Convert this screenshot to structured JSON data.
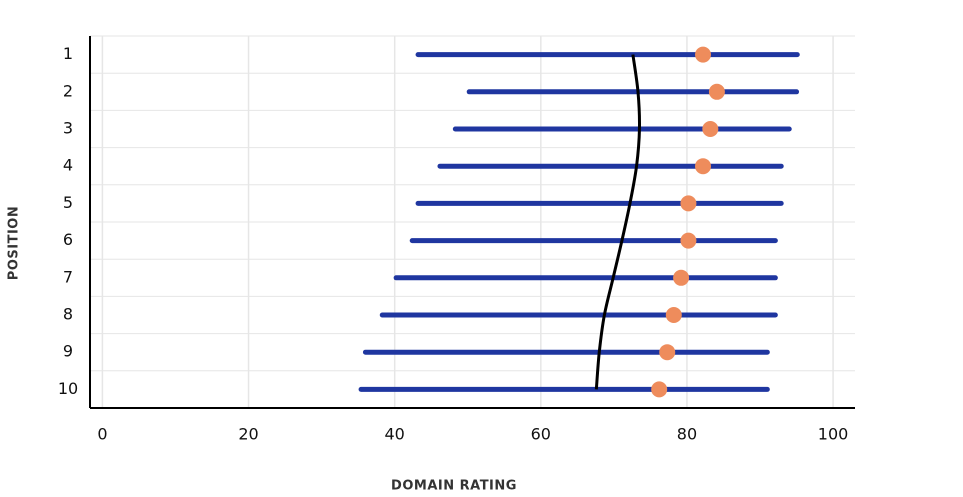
{
  "chart_data": {
    "type": "range-dot",
    "categories": [
      "1",
      "2",
      "3",
      "4",
      "5",
      "6",
      "7",
      "8",
      "9",
      "10"
    ],
    "low": [
      43.2,
      50.2,
      48.3,
      46.2,
      43.2,
      42.4,
      40.2,
      38.3,
      36,
      35.4
    ],
    "high": [
      95.1,
      95,
      94,
      92.9,
      92.9,
      92.1,
      92.1,
      92.1,
      91,
      91
    ],
    "median": [
      82.2,
      84.1,
      83.2,
      82.2,
      80.2,
      80.2,
      79.2,
      78.2,
      77.3,
      76.2
    ],
    "trend": [
      72.6,
      73.3,
      73.5,
      73.1,
      72.2,
      71.1,
      69.9,
      68.7,
      68,
      67.6
    ],
    "bar_color": "#1f36a0",
    "dot_color": "#ee8c5c",
    "trend_color": "#000000",
    "xlabel": "DOMAIN RATING",
    "ylabel": "POSITION",
    "xlim": [
      -1.7,
      103
    ],
    "xticks": [
      0,
      20,
      40,
      60,
      80,
      100
    ],
    "grid": true
  }
}
